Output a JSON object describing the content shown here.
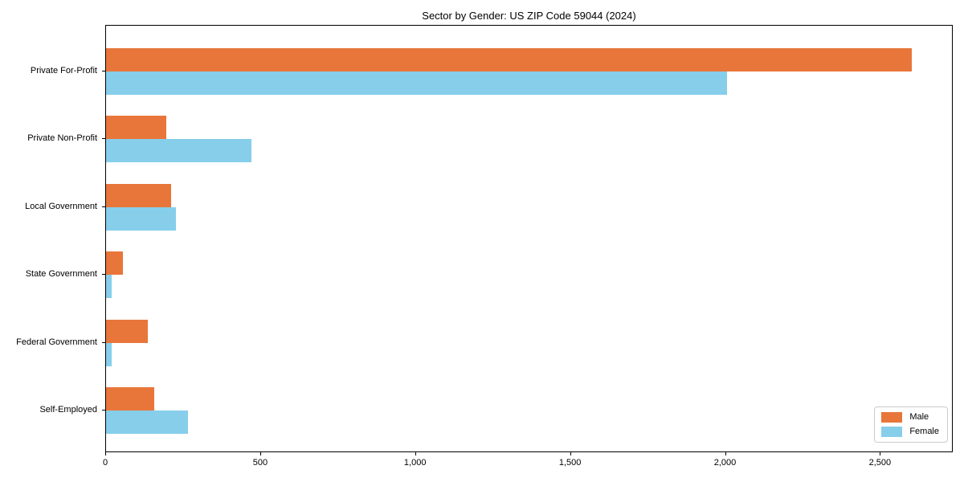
{
  "chart_data": {
    "type": "bar",
    "orientation": "horizontal",
    "title": "Sector by Gender: US ZIP Code 59044 (2024)",
    "categories": [
      "Private For-Profit",
      "Private Non-Profit",
      "Local Government",
      "State Government",
      "Federal Government",
      "Self-Employed"
    ],
    "series": [
      {
        "name": "Male",
        "color": "#e8763a",
        "values": [
          2600,
          195,
          210,
          55,
          135,
          155
        ]
      },
      {
        "name": "Female",
        "color": "#87ceeb",
        "values": [
          2005,
          470,
          225,
          18,
          18,
          265
        ]
      }
    ],
    "xlabel": "",
    "ylabel": "",
    "xlim": [
      0,
      2735
    ],
    "xticks": [
      0,
      500,
      1000,
      1500,
      2000,
      2500
    ],
    "xtick_labels": [
      "0",
      "500",
      "1,000",
      "1,500",
      "2,000",
      "2,500"
    ],
    "legend_position": "lower right",
    "grid": false,
    "frame": true
  }
}
